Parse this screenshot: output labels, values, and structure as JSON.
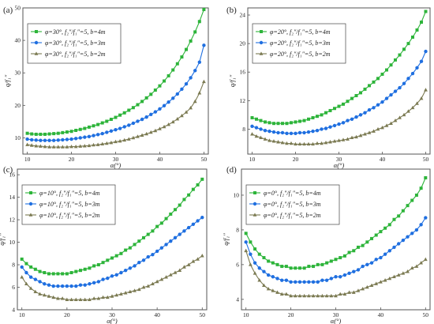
{
  "chart_data": [
    {
      "type": "line",
      "panel_label": "(a)",
      "xlabel": "α(°)",
      "ylabel": "q/f₁″",
      "xlim": [
        9,
        51
      ],
      "ylim": [
        5,
        50
      ],
      "xticks": [
        10,
        20,
        30,
        40,
        50
      ],
      "yticks": [
        10,
        20,
        30,
        40,
        50
      ],
      "legend_position": "upper-left",
      "grid": false,
      "x": [
        10,
        11,
        12,
        13,
        14,
        15,
        16,
        17,
        18,
        19,
        20,
        21,
        22,
        23,
        24,
        25,
        26,
        27,
        28,
        29,
        30,
        31,
        32,
        33,
        34,
        35,
        36,
        37,
        38,
        39,
        40,
        41,
        42,
        43,
        44,
        45,
        46,
        47,
        48,
        49,
        50
      ],
      "series": [
        {
          "name": "φ=30°, f₂″/f₁″=5, b=4m",
          "color": "#2db43a",
          "marker": "square",
          "values": [
            11.4,
            11.2,
            11.1,
            11.1,
            11.1,
            11.2,
            11.3,
            11.4,
            11.6,
            11.8,
            12.0,
            12.3,
            12.6,
            12.9,
            13.3,
            13.7,
            14.1,
            14.6,
            15.1,
            15.7,
            16.3,
            17.0,
            17.7,
            18.5,
            19.3,
            20.2,
            21.2,
            22.3,
            23.4,
            24.7,
            26.0,
            27.5,
            29.1,
            30.9,
            32.8,
            34.9,
            37.2,
            39.8,
            42.6,
            45.8,
            49.5
          ]
        },
        {
          "name": "φ=30°, f₂″/f₁″=5, b=3m",
          "color": "#1f6fe0",
          "marker": "circle",
          "values": [
            9.6,
            9.4,
            9.3,
            9.2,
            9.2,
            9.2,
            9.2,
            9.3,
            9.4,
            9.5,
            9.6,
            9.8,
            10.0,
            10.2,
            10.4,
            10.7,
            11.0,
            11.3,
            11.7,
            12.1,
            12.5,
            12.9,
            13.4,
            13.9,
            14.5,
            15.1,
            15.7,
            16.4,
            17.2,
            18.0,
            18.9,
            19.9,
            21.0,
            22.2,
            23.5,
            25.0,
            26.6,
            28.5,
            30.7,
            33.3,
            38.5
          ]
        },
        {
          "name": "φ=30°, f₂″/f₁″=5, b=2m",
          "color": "#7b7a52",
          "marker": "triangle",
          "values": [
            7.9,
            7.7,
            7.5,
            7.4,
            7.3,
            7.2,
            7.2,
            7.2,
            7.2,
            7.2,
            7.3,
            7.3,
            7.4,
            7.5,
            7.6,
            7.8,
            7.9,
            8.1,
            8.3,
            8.5,
            8.8,
            9.0,
            9.3,
            9.6,
            10.0,
            10.4,
            10.8,
            11.2,
            11.7,
            12.2,
            12.8,
            13.4,
            14.1,
            14.9,
            15.8,
            16.8,
            17.9,
            19.2,
            21.2,
            23.8,
            27.3
          ]
        }
      ]
    },
    {
      "type": "line",
      "panel_label": "(b)",
      "xlabel": "α(°)",
      "ylabel": "q/f₁″",
      "xlim": [
        9,
        51
      ],
      "ylim": [
        4.5,
        25
      ],
      "xticks": [
        10,
        20,
        30,
        40,
        50
      ],
      "yticks": [
        8,
        12,
        16,
        20,
        24
      ],
      "legend_position": "upper-left",
      "grid": false,
      "x": [
        10,
        11,
        12,
        13,
        14,
        15,
        16,
        17,
        18,
        19,
        20,
        21,
        22,
        23,
        24,
        25,
        26,
        27,
        28,
        29,
        30,
        31,
        32,
        33,
        34,
        35,
        36,
        37,
        38,
        39,
        40,
        41,
        42,
        43,
        44,
        45,
        46,
        47,
        48,
        49,
        50
      ],
      "series": [
        {
          "name": "φ=20°, f₂″/f₁″=5, b=4m",
          "color": "#2db43a",
          "marker": "square",
          "values": [
            9.6,
            9.4,
            9.2,
            9.0,
            8.9,
            8.8,
            8.8,
            8.8,
            8.8,
            8.9,
            9.0,
            9.1,
            9.2,
            9.4,
            9.6,
            9.8,
            10.0,
            10.3,
            10.6,
            10.9,
            11.2,
            11.5,
            11.9,
            12.3,
            12.7,
            13.1,
            13.6,
            14.1,
            14.6,
            15.1,
            15.7,
            16.3,
            17.0,
            17.7,
            18.4,
            19.2,
            20.0,
            20.9,
            21.9,
            23.0,
            24.5
          ]
        },
        {
          "name": "φ=20°, f₂″/f₁″=5, b=3m",
          "color": "#1f6fe0",
          "marker": "circle",
          "values": [
            8.4,
            8.2,
            8.0,
            7.8,
            7.7,
            7.6,
            7.5,
            7.5,
            7.4,
            7.4,
            7.4,
            7.5,
            7.5,
            7.6,
            7.7,
            7.8,
            8.0,
            8.1,
            8.3,
            8.5,
            8.7,
            8.9,
            9.2,
            9.4,
            9.7,
            10.0,
            10.3,
            10.7,
            11.0,
            11.4,
            11.8,
            12.3,
            12.8,
            13.3,
            13.8,
            14.4,
            15.1,
            15.8,
            16.6,
            17.5,
            18.9
          ]
        },
        {
          "name": "φ=20°, f₂″/f₁″=5, b=2m",
          "color": "#7b7a52",
          "marker": "triangle",
          "values": [
            7.3,
            7.0,
            6.8,
            6.6,
            6.4,
            6.3,
            6.2,
            6.1,
            6.0,
            6.0,
            5.9,
            5.9,
            5.9,
            5.9,
            5.9,
            6.0,
            6.0,
            6.1,
            6.2,
            6.3,
            6.4,
            6.5,
            6.6,
            6.8,
            6.9,
            7.1,
            7.3,
            7.5,
            7.7,
            8.0,
            8.2,
            8.5,
            8.8,
            9.2,
            9.6,
            10.0,
            10.5,
            11.0,
            11.6,
            12.3,
            13.5
          ]
        }
      ]
    },
    {
      "type": "line",
      "panel_label": "(c)",
      "xlabel": "α(°)",
      "ylabel": "q/f₁″",
      "xlim": [
        9,
        51
      ],
      "ylim": [
        4,
        16.5
      ],
      "xticks": [
        10,
        20,
        30,
        40,
        50
      ],
      "yticks": [
        4,
        6,
        8,
        10,
        12,
        14,
        16
      ],
      "legend_position": "upper-left",
      "grid": false,
      "x": [
        10,
        11,
        12,
        13,
        14,
        15,
        16,
        17,
        18,
        19,
        20,
        21,
        22,
        23,
        24,
        25,
        26,
        27,
        28,
        29,
        30,
        31,
        32,
        33,
        34,
        35,
        36,
        37,
        38,
        39,
        40,
        41,
        42,
        43,
        44,
        45,
        46,
        47,
        48,
        49,
        50
      ],
      "series": [
        {
          "name": "φ=10°, f₂″/f₁″=5, b=4m",
          "color": "#2db43a",
          "marker": "square",
          "values": [
            8.5,
            8.1,
            7.8,
            7.6,
            7.4,
            7.3,
            7.2,
            7.2,
            7.2,
            7.2,
            7.2,
            7.3,
            7.4,
            7.5,
            7.6,
            7.7,
            7.9,
            8.0,
            8.2,
            8.4,
            8.6,
            8.8,
            9.0,
            9.3,
            9.5,
            9.8,
            10.1,
            10.4,
            10.7,
            11.0,
            11.4,
            11.7,
            12.1,
            12.5,
            12.9,
            13.3,
            13.8,
            14.2,
            14.7,
            15.1,
            15.6
          ]
        },
        {
          "name": "φ=10°, f₂″/f₁″=5, b=3m",
          "color": "#1f6fe0",
          "marker": "circle",
          "values": [
            7.8,
            7.3,
            6.9,
            6.7,
            6.5,
            6.3,
            6.2,
            6.1,
            6.1,
            6.1,
            6.1,
            6.1,
            6.1,
            6.2,
            6.2,
            6.3,
            6.4,
            6.5,
            6.7,
            6.8,
            7.0,
            7.1,
            7.3,
            7.5,
            7.7,
            7.9,
            8.2,
            8.4,
            8.7,
            8.9,
            9.2,
            9.5,
            9.8,
            10.1,
            10.4,
            10.7,
            11.0,
            11.3,
            11.6,
            11.9,
            12.2
          ]
        },
        {
          "name": "φ=10°, f₂″/f₁″=5, b=2m",
          "color": "#7b7a52",
          "marker": "triangle",
          "values": [
            6.9,
            6.3,
            5.9,
            5.6,
            5.4,
            5.3,
            5.2,
            5.1,
            5.0,
            5.0,
            4.9,
            4.9,
            4.9,
            4.9,
            4.9,
            4.9,
            5.0,
            5.0,
            5.1,
            5.1,
            5.2,
            5.3,
            5.4,
            5.5,
            5.6,
            5.7,
            5.8,
            6.0,
            6.1,
            6.3,
            6.5,
            6.7,
            6.9,
            7.1,
            7.3,
            7.5,
            7.8,
            8.0,
            8.3,
            8.5,
            8.8
          ]
        }
      ]
    },
    {
      "type": "line",
      "panel_label": "(d)",
      "xlabel": "α(°)",
      "ylabel": "q/f₁″",
      "xlim": [
        9,
        51
      ],
      "ylim": [
        3.4,
        11.5
      ],
      "xticks": [
        10,
        20,
        30,
        40,
        50
      ],
      "yticks": [
        4,
        6,
        8,
        10
      ],
      "legend_position": "upper-left",
      "grid": false,
      "x": [
        10,
        11,
        12,
        13,
        14,
        15,
        16,
        17,
        18,
        19,
        20,
        21,
        22,
        23,
        24,
        25,
        26,
        27,
        28,
        29,
        30,
        31,
        32,
        33,
        34,
        35,
        36,
        37,
        38,
        39,
        40,
        41,
        42,
        43,
        44,
        45,
        46,
        47,
        48,
        49,
        50
      ],
      "series": [
        {
          "name": "φ=0°, f₂″/f₁″=5, b=4m",
          "color": "#2db43a",
          "marker": "square",
          "values": [
            7.8,
            7.3,
            6.9,
            6.6,
            6.4,
            6.2,
            6.1,
            6.0,
            5.9,
            5.9,
            5.8,
            5.8,
            5.8,
            5.8,
            5.9,
            5.9,
            6.0,
            6.0,
            6.1,
            6.2,
            6.3,
            6.4,
            6.5,
            6.7,
            6.8,
            7.0,
            7.1,
            7.3,
            7.5,
            7.7,
            7.9,
            8.1,
            8.3,
            8.6,
            8.8,
            9.1,
            9.4,
            9.7,
            10.0,
            10.4,
            11.0
          ]
        },
        {
          "name": "φ=0°, f₂″/f₁″=5, b=3m",
          "color": "#1f6fe0",
          "marker": "circle",
          "values": [
            7.3,
            6.6,
            6.1,
            5.8,
            5.6,
            5.4,
            5.3,
            5.2,
            5.1,
            5.1,
            5.0,
            5.0,
            5.0,
            5.0,
            5.0,
            5.0,
            5.0,
            5.1,
            5.1,
            5.2,
            5.3,
            5.3,
            5.4,
            5.5,
            5.6,
            5.7,
            5.9,
            6.0,
            6.1,
            6.3,
            6.4,
            6.6,
            6.8,
            7.0,
            7.2,
            7.4,
            7.6,
            7.8,
            8.0,
            8.3,
            8.7
          ]
        },
        {
          "name": "φ=0°, f₂″/f₁″=5, b=2m",
          "color": "#7b7a52",
          "marker": "triangle",
          "values": [
            6.8,
            6.0,
            5.5,
            5.1,
            4.8,
            4.6,
            4.5,
            4.4,
            4.3,
            4.3,
            4.2,
            4.2,
            4.2,
            4.2,
            4.2,
            4.2,
            4.2,
            4.2,
            4.2,
            4.2,
            4.2,
            4.3,
            4.3,
            4.4,
            4.4,
            4.5,
            4.6,
            4.7,
            4.8,
            4.9,
            5.0,
            5.1,
            5.2,
            5.3,
            5.4,
            5.5,
            5.6,
            5.8,
            5.9,
            6.1,
            6.3
          ]
        }
      ]
    }
  ]
}
